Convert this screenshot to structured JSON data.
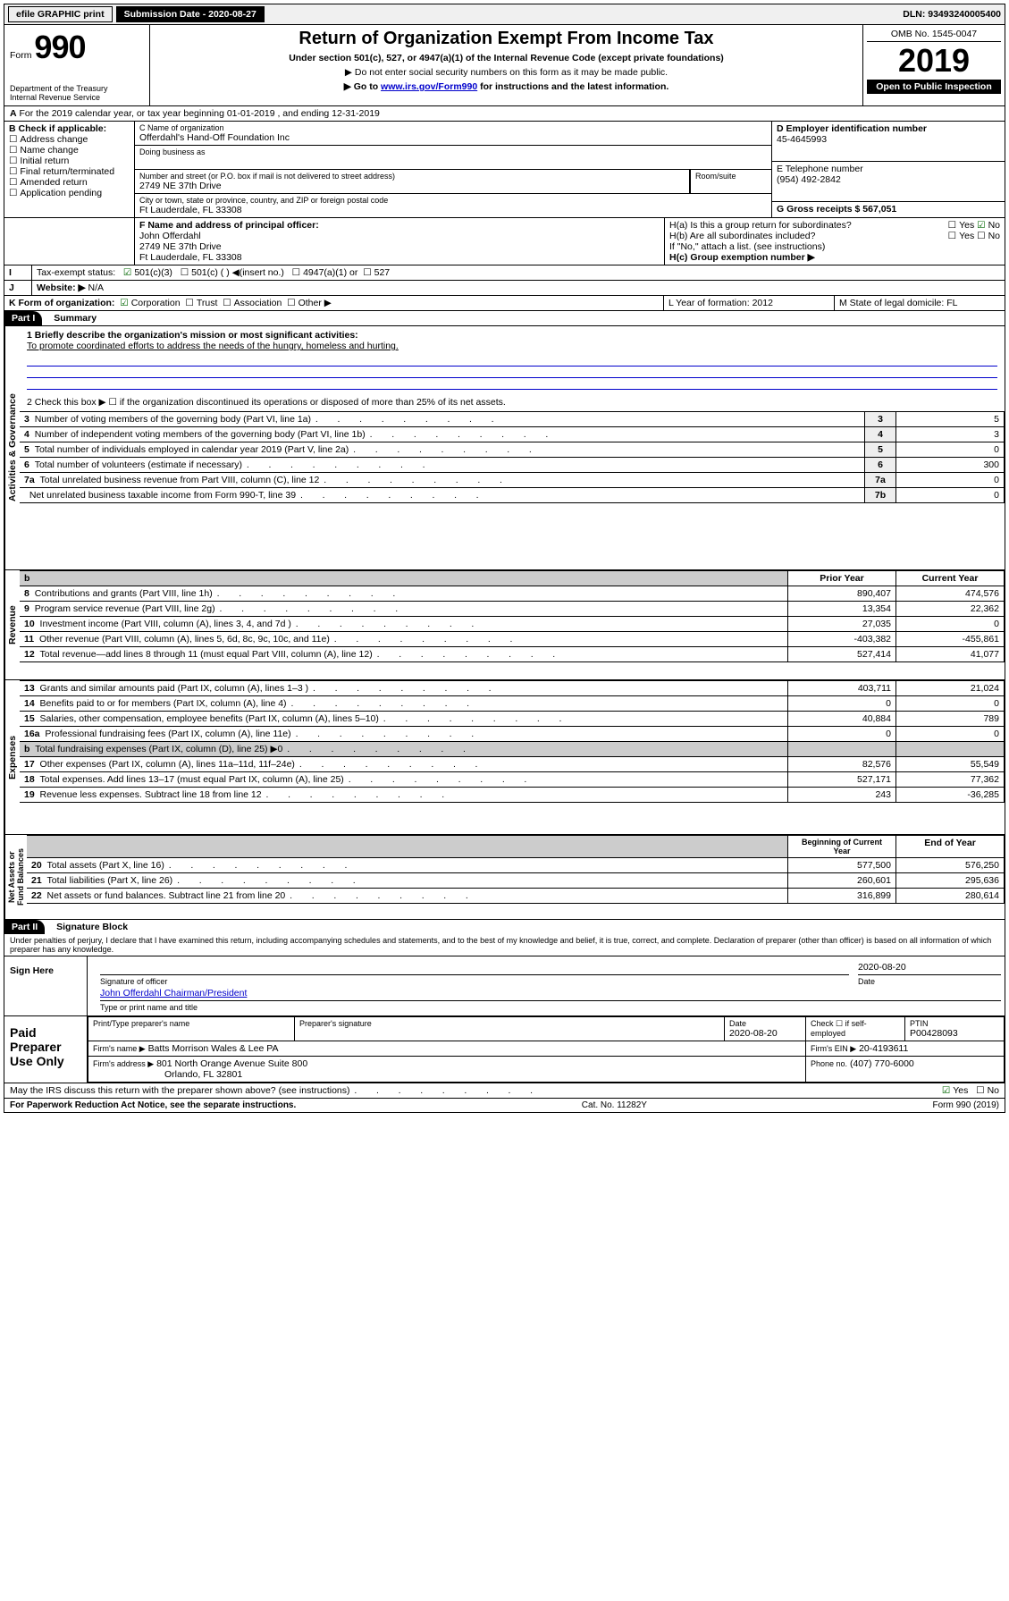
{
  "top": {
    "efile": "efile GRAPHIC print",
    "sub_label": "Submission Date - 2020-08-27",
    "dln": "DLN: 93493240005400"
  },
  "hdr": {
    "form_word": "Form",
    "form_num": "990",
    "dept": "Department of the Treasury\nInternal Revenue Service",
    "title": "Return of Organization Exempt From Income Tax",
    "sub1": "Under section 501(c), 527, or 4947(a)(1) of the Internal Revenue Code (except private foundations)",
    "sub2": "▶ Do not enter social security numbers on this form as it may be made public.",
    "sub3_pre": "▶ Go to ",
    "sub3_link": "www.irs.gov/Form990",
    "sub3_post": " for instructions and the latest information.",
    "omb": "OMB No. 1545-0047",
    "year": "2019",
    "open": "Open to Public Inspection"
  },
  "A": {
    "text": "For the 2019 calendar year, or tax year beginning 01-01-2019   , and ending 12-31-2019"
  },
  "B": {
    "label": "B Check if applicable:",
    "opts": [
      "Address change",
      "Name change",
      "Initial return",
      "Final return/terminated",
      "Amended return",
      "Application pending"
    ]
  },
  "C": {
    "name_label": "C Name of organization",
    "name": "Offerdahl's Hand-Off Foundation Inc",
    "dba_label": "Doing business as",
    "street_label": "Number and street (or P.O. box if mail is not delivered to street address)",
    "room_label": "Room/suite",
    "street": "2749 NE 37th Drive",
    "city_label": "City or town, state or province, country, and ZIP or foreign postal code",
    "city": "Ft Lauderdale, FL  33308"
  },
  "D": {
    "label": "D Employer identification number",
    "val": "45-4645993"
  },
  "E": {
    "label": "E Telephone number",
    "val": "(954) 492-2842"
  },
  "G": {
    "label": "G Gross receipts $ 567,051"
  },
  "F": {
    "label": "F  Name and address of principal officer:",
    "name": "John Offerdahl",
    "street": "2749 NE 37th Drive",
    "city": "Ft Lauderdale, FL  33308"
  },
  "H": {
    "a": "H(a)  Is this a group return for subordinates?",
    "a_yes": "Yes",
    "a_no": "No",
    "b": "H(b)  Are all subordinates included?",
    "b_yes": "Yes",
    "b_no": "No",
    "b_note": "If \"No,\" attach a list. (see instructions)",
    "c": "H(c)  Group exemption number ▶"
  },
  "I": {
    "label": "Tax-exempt status:",
    "c501c3": "501(c)(3)",
    "c501c": "501(c) (  ) ◀(insert no.)",
    "c4947": "4947(a)(1) or",
    "c527": "527"
  },
  "J": {
    "label": "Website: ▶",
    "val": "N/A"
  },
  "K": {
    "label": "K Form of organization:",
    "corp": "Corporation",
    "trust": "Trust",
    "assoc": "Association",
    "other": "Other ▶"
  },
  "L": {
    "label": "L Year of formation: 2012"
  },
  "M": {
    "label": "M State of legal domicile: FL"
  },
  "part1": {
    "hdr": "Part I",
    "title": "Summary",
    "l1_label": "1  Briefly describe the organization's mission or most significant activities:",
    "l1_text": "To promote coordinated efforts to address the needs of the hungry, homeless and hurting.",
    "l2": "2   Check this box ▶ ☐  if the organization discontinued its operations or disposed of more than 25% of its net assets.",
    "rows_ag": [
      {
        "n": "3",
        "t": "Number of voting members of the governing body (Part VI, line 1a)",
        "ln": "3",
        "v": "5"
      },
      {
        "n": "4",
        "t": "Number of independent voting members of the governing body (Part VI, line 1b)",
        "ln": "4",
        "v": "3"
      },
      {
        "n": "5",
        "t": "Total number of individuals employed in calendar year 2019 (Part V, line 2a)",
        "ln": "5",
        "v": "0"
      },
      {
        "n": "6",
        "t": "Total number of volunteers (estimate if necessary)",
        "ln": "6",
        "v": "300"
      },
      {
        "n": "7a",
        "t": "Total unrelated business revenue from Part VIII, column (C), line 12",
        "ln": "7a",
        "v": "0"
      },
      {
        "n": "",
        "t": "Net unrelated business taxable income from Form 990-T, line 39",
        "ln": "7b",
        "v": "0"
      }
    ],
    "col_b": "b",
    "col_prior": "Prior Year",
    "col_curr": "Current Year",
    "rows_rev": [
      {
        "n": "8",
        "t": "Contributions and grants (Part VIII, line 1h)",
        "p": "890,407",
        "c": "474,576"
      },
      {
        "n": "9",
        "t": "Program service revenue (Part VIII, line 2g)",
        "p": "13,354",
        "c": "22,362"
      },
      {
        "n": "10",
        "t": "Investment income (Part VIII, column (A), lines 3, 4, and 7d )",
        "p": "27,035",
        "c": "0"
      },
      {
        "n": "11",
        "t": "Other revenue (Part VIII, column (A), lines 5, 6d, 8c, 9c, 10c, and 11e)",
        "p": "-403,382",
        "c": "-455,861"
      },
      {
        "n": "12",
        "t": "Total revenue—add lines 8 through 11 (must equal Part VIII, column (A), line 12)",
        "p": "527,414",
        "c": "41,077"
      }
    ],
    "rows_exp": [
      {
        "n": "13",
        "t": "Grants and similar amounts paid (Part IX, column (A), lines 1–3 )",
        "p": "403,711",
        "c": "21,024"
      },
      {
        "n": "14",
        "t": "Benefits paid to or for members (Part IX, column (A), line 4)",
        "p": "0",
        "c": "0"
      },
      {
        "n": "15",
        "t": "Salaries, other compensation, employee benefits (Part IX, column (A), lines 5–10)",
        "p": "40,884",
        "c": "789"
      },
      {
        "n": "16a",
        "t": "Professional fundraising fees (Part IX, column (A), line 11e)",
        "p": "0",
        "c": "0"
      },
      {
        "n": "b",
        "t": "Total fundraising expenses (Part IX, column (D), line 25) ▶0",
        "p": "",
        "c": "",
        "grey": true
      },
      {
        "n": "17",
        "t": "Other expenses (Part IX, column (A), lines 11a–11d, 11f–24e)",
        "p": "82,576",
        "c": "55,549"
      },
      {
        "n": "18",
        "t": "Total expenses. Add lines 13–17 (must equal Part IX, column (A), line 25)",
        "p": "527,171",
        "c": "77,362"
      },
      {
        "n": "19",
        "t": "Revenue less expenses. Subtract line 18 from line 12",
        "p": "243",
        "c": "-36,285"
      }
    ],
    "col_beg": "Beginning of Current Year",
    "col_end": "End of Year",
    "rows_na": [
      {
        "n": "20",
        "t": "Total assets (Part X, line 16)",
        "p": "577,500",
        "c": "576,250"
      },
      {
        "n": "21",
        "t": "Total liabilities (Part X, line 26)",
        "p": "260,601",
        "c": "295,636"
      },
      {
        "n": "22",
        "t": "Net assets or fund balances. Subtract line 21 from line 20",
        "p": "316,899",
        "c": "280,614"
      }
    ],
    "vert_ag": "Activities & Governance",
    "vert_rev": "Revenue",
    "vert_exp": "Expenses",
    "vert_na": "Net Assets or Fund Balances"
  },
  "part2": {
    "hdr": "Part II",
    "title": "Signature Block",
    "decl": "Under penalties of perjury, I declare that I have examined this return, including accompanying schedules and statements, and to the best of my knowledge and belief, it is true, correct, and complete. Declaration of preparer (other than officer) is based on all information of which preparer has any knowledge.",
    "sign_here": "Sign Here",
    "sig_date": "2020-08-20",
    "sig_officer": "Signature of officer",
    "sig_date_lbl": "Date",
    "sig_name": "John Offerdahl  Chairman/President",
    "sig_name_lbl": "Type or print name and title",
    "paid": "Paid Preparer Use Only",
    "prep_name_lbl": "Print/Type preparer's name",
    "prep_sig_lbl": "Preparer's signature",
    "prep_date_lbl": "Date",
    "prep_date": "2020-08-20",
    "prep_chk": "Check ☐ if self-employed",
    "ptin_lbl": "PTIN",
    "ptin": "P00428093",
    "firm_name_lbl": "Firm's name     ▶",
    "firm_name": "Batts Morrison Wales & Lee PA",
    "firm_ein_lbl": "Firm's EIN ▶",
    "firm_ein": "20-4193611",
    "firm_addr_lbl": "Firm's address ▶",
    "firm_addr1": "801 North Orange Avenue Suite 800",
    "firm_addr2": "Orlando, FL  32801",
    "phone_lbl": "Phone no.",
    "phone": "(407) 770-6000",
    "discuss": "May the IRS discuss this return with the preparer shown above? (see instructions)",
    "d_yes": "Yes",
    "d_no": "No"
  },
  "footer": {
    "left": "For Paperwork Reduction Act Notice, see the separate instructions.",
    "mid": "Cat. No. 11282Y",
    "right": "Form 990 (2019)"
  }
}
